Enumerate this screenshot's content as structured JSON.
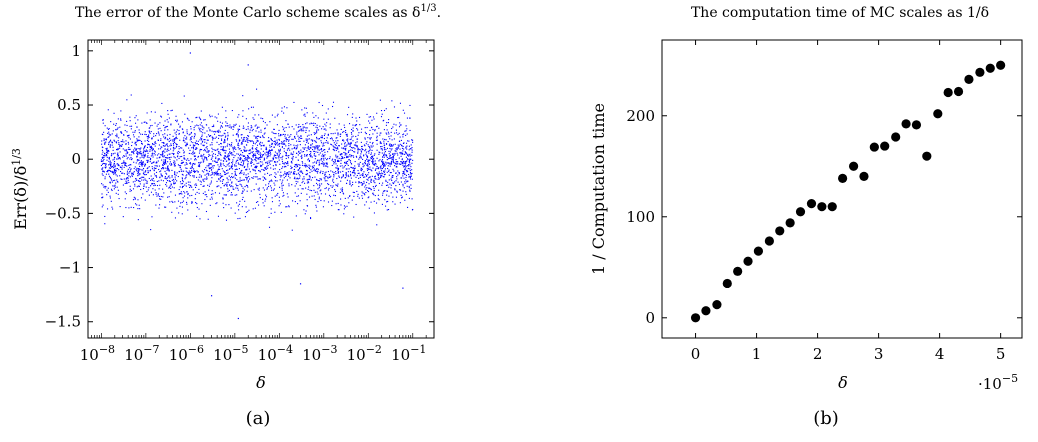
{
  "panels": {
    "a": {
      "caption": "(a)",
      "title": "The error of the Monte Carlo scheme scales as δ",
      "title_sup": "1/3",
      "title_end": ".",
      "ylabel_main": "Err(δ)/δ",
      "ylabel_sup": "1/3",
      "xlabel": "δ",
      "x_tick_base": "10",
      "x_tick_exponents": [
        "−8",
        "−7",
        "−6",
        "−5",
        "−4",
        "−3",
        "−2",
        "−1"
      ],
      "y_tick_labels": [
        "1",
        "0.5",
        "0",
        "−0.5",
        "−1",
        "−1.5"
      ]
    },
    "b": {
      "caption": "(b)",
      "title": "The computation time of MC scales as 1/δ",
      "ylabel": "1 / Computation time",
      "xlabel": "δ",
      "x_tick_labels": [
        "0",
        "1",
        "2",
        "3",
        "4",
        "5"
      ],
      "y_tick_labels": [
        "0",
        "100",
        "200"
      ],
      "x_multiplier_base": "·10",
      "x_multiplier_exp": "−5"
    }
  },
  "chart_data": [
    {
      "type": "scatter",
      "title": "The error of the Monte Carlo scheme scales as δ^{1/3}.",
      "xlabel": "δ",
      "ylabel": "Err(δ)/δ^{1/3}",
      "x_scale": "log",
      "xlim": [
        5e-09,
        0.3
      ],
      "ylim": [
        -1.65,
        1.1
      ],
      "y_ticks": [
        -1.5,
        -1,
        -0.5,
        0,
        0.5,
        1
      ],
      "x_ticks": [
        1e-08,
        1e-07,
        1e-06,
        1e-05,
        0.0001,
        0.001,
        0.01,
        0.1
      ],
      "marker_color": "#0000ff",
      "points_note_hidden": "dense cloud of ~4000 points",
      "point_count": 4000,
      "x_range": [
        1e-08,
        0.1
      ],
      "y_distribution": {
        "center": 0,
        "spread": 0.25,
        "min": -1.48,
        "max": 0.98
      },
      "outliers": [
        {
          "x": 1e-06,
          "y": 0.98
        },
        {
          "x": 2e-05,
          "y": 0.87
        },
        {
          "x": 1.2e-05,
          "y": -1.47
        },
        {
          "x": 3e-06,
          "y": -1.26
        },
        {
          "x": 0.06,
          "y": -1.19
        },
        {
          "x": 0.0003,
          "y": -1.15
        }
      ]
    },
    {
      "type": "scatter",
      "title": "The computation time of MC scales as 1/δ",
      "xlabel": "δ",
      "ylabel": "1 / Computation time",
      "x_multiplier": "1e-5",
      "xlim": [
        -0.55,
        5.35
      ],
      "ylim": [
        -20,
        275
      ],
      "x_ticks": [
        0,
        1,
        2,
        3,
        4,
        5
      ],
      "y_ticks": [
        0,
        100,
        200
      ],
      "marker_color": "#000000",
      "x": [
        0.0,
        0.17,
        0.35,
        0.52,
        0.69,
        0.86,
        1.03,
        1.21,
        1.38,
        1.55,
        1.72,
        1.9,
        2.07,
        2.24,
        2.41,
        2.59,
        2.76,
        2.93,
        3.1,
        3.28,
        3.45,
        3.62,
        3.79,
        3.97,
        4.14,
        4.31,
        4.48,
        4.66,
        4.83,
        5.0
      ],
      "y": [
        0,
        7,
        13,
        34,
        46,
        56,
        66,
        76,
        86,
        94,
        105,
        113,
        110,
        110,
        138,
        150,
        140,
        169,
        170,
        179,
        192,
        191,
        160,
        202,
        223,
        224,
        236,
        243,
        247,
        250
      ]
    }
  ]
}
